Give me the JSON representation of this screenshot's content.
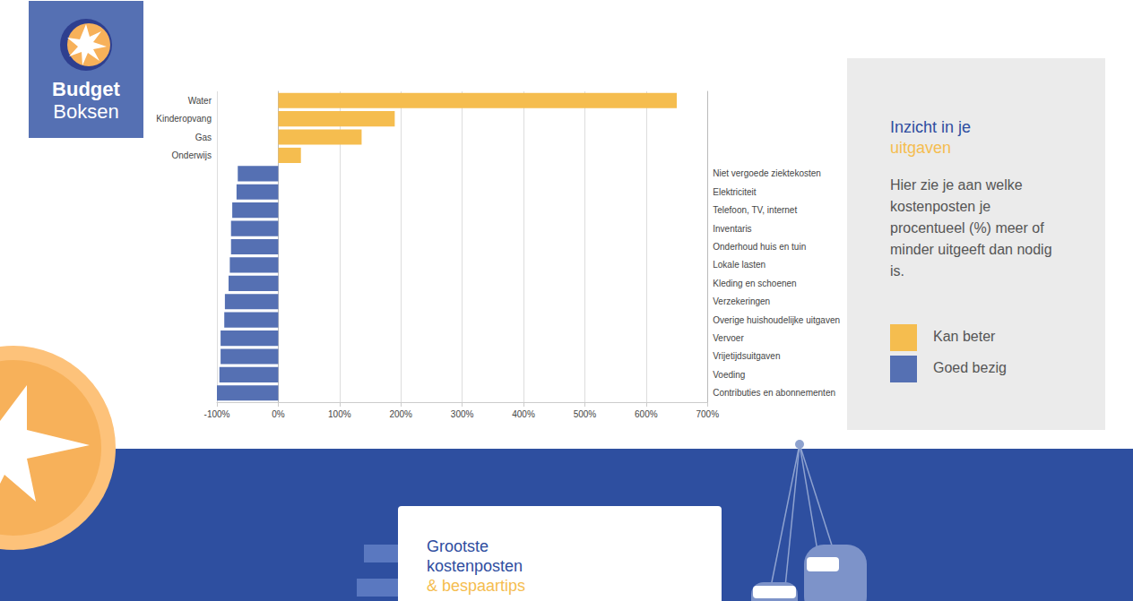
{
  "header": {
    "logo": [
      "Budget",
      "Boksen"
    ]
  },
  "chart_data": {
    "type": "bar",
    "orientation": "horizontal",
    "categories": [
      "Water",
      "Kinderopvang",
      "Gas",
      "Onderwijs",
      "Niet vergoede ziektekosten",
      "Elektriciteit",
      "Telefoon, TV, internet",
      "Inventaris",
      "Onderhoud huis en tuin",
      "Lokale lasten",
      "Kleding en schoenen",
      "Verzekeringen",
      "Overige huishoudelijke uitgaven",
      "Vervoer",
      "Vrijetijdsuitgaven",
      "Voeding",
      "Contributies en abonnementen"
    ],
    "values": [
      650,
      190,
      136,
      37,
      -66,
      -68,
      -75,
      -77,
      -77,
      -79,
      -81,
      -87,
      -88,
      -94,
      -94,
      -96,
      -100
    ],
    "colors": [
      "#f5bd4f",
      "#f5bd4f",
      "#f5bd4f",
      "#f5bd4f",
      "#5570b3",
      "#5570b3",
      "#5570b3",
      "#5570b3",
      "#5570b3",
      "#5570b3",
      "#5570b3",
      "#5570b3",
      "#5570b3",
      "#5570b3",
      "#5570b3",
      "#5570b3",
      "#5570b3"
    ],
    "xlim": [
      -100,
      700
    ],
    "xticks": [
      {
        "value": -100,
        "label": "-100%"
      },
      {
        "value": 0,
        "label": "0%"
      },
      {
        "value": 100,
        "label": "100%"
      },
      {
        "value": 200,
        "label": "200%"
      },
      {
        "value": 300,
        "label": "300%"
      },
      {
        "value": 400,
        "label": "400%"
      },
      {
        "value": 500,
        "label": "500%"
      },
      {
        "value": 600,
        "label": "600%"
      },
      {
        "value": 700,
        "label": "700%"
      }
    ],
    "grid": true
  },
  "panel": {
    "title": [
      "Inzicht in je",
      "uitgaven"
    ],
    "text": "Hier zie je aan welke kostenposten je procentueel (%) meer of minder uitgeeft dan nodig is.",
    "legend": [
      {
        "label": "Kan beter",
        "color": "#f5bd4f"
      },
      {
        "label": "Goed bezig",
        "color": "#5570b3"
      }
    ]
  },
  "card": {
    "title": [
      "Grootste",
      "kostenposten",
      "& bespaartips"
    ]
  }
}
